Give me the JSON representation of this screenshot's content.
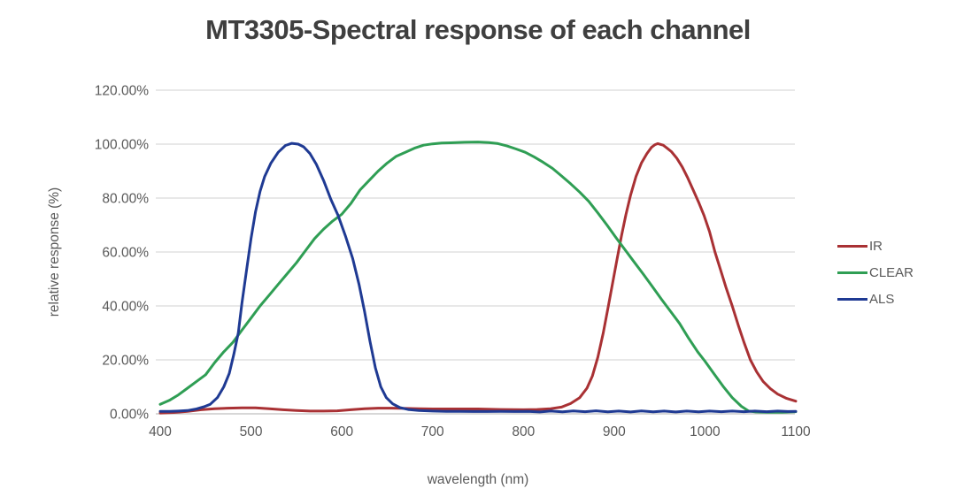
{
  "colors": {
    "background": "#FFFFFF",
    "title_text": "#3F3F3F",
    "axis_text": "#595959",
    "gridline": "#D9D9D9",
    "axis_line": "#BFBFBF"
  },
  "chart_data": {
    "type": "line",
    "title": "MT3305-Spectral response of each channel",
    "xlabel": "wavelength (nm)",
    "ylabel": "relative response (%)",
    "xlim": [
      400,
      1100
    ],
    "ylim_pct": [
      0,
      120
    ],
    "x_ticks": [
      400,
      500,
      600,
      700,
      800,
      900,
      1000,
      1100
    ],
    "y_ticks": [
      "0.00%",
      "20.00%",
      "40.00%",
      "60.00%",
      "80.00%",
      "100.00%",
      "120.00%"
    ],
    "grid": "horizontal-only",
    "legend_position": "right",
    "series": [
      {
        "name": "IR",
        "color": "#A93134",
        "points": [
          [
            400,
            0.3
          ],
          [
            415,
            0.5
          ],
          [
            430,
            0.9
          ],
          [
            445,
            1.5
          ],
          [
            460,
            1.9
          ],
          [
            475,
            2.1
          ],
          [
            490,
            2.2
          ],
          [
            505,
            2.2
          ],
          [
            520,
            1.9
          ],
          [
            535,
            1.5
          ],
          [
            550,
            1.2
          ],
          [
            565,
            1.0
          ],
          [
            580,
            1.0
          ],
          [
            595,
            1.1
          ],
          [
            610,
            1.5
          ],
          [
            625,
            1.9
          ],
          [
            640,
            2.1
          ],
          [
            655,
            2.1
          ],
          [
            670,
            2.0
          ],
          [
            685,
            1.9
          ],
          [
            700,
            1.8
          ],
          [
            725,
            1.8
          ],
          [
            750,
            1.8
          ],
          [
            775,
            1.6
          ],
          [
            800,
            1.5
          ],
          [
            815,
            1.6
          ],
          [
            830,
            1.9
          ],
          [
            842,
            2.5
          ],
          [
            852,
            3.8
          ],
          [
            862,
            6.0
          ],
          [
            870,
            9.5
          ],
          [
            876,
            14
          ],
          [
            882,
            21
          ],
          [
            888,
            30
          ],
          [
            893,
            39
          ],
          [
            898,
            48
          ],
          [
            903,
            57
          ],
          [
            908,
            66
          ],
          [
            913,
            74
          ],
          [
            918,
            81
          ],
          [
            924,
            88
          ],
          [
            930,
            93
          ],
          [
            936,
            96.5
          ],
          [
            941,
            98.8
          ],
          [
            945,
            99.8
          ],
          [
            948,
            100.2
          ],
          [
            951,
            99.9
          ],
          [
            954,
            99.6
          ],
          [
            958,
            98.6
          ],
          [
            963,
            97.2
          ],
          [
            969,
            94.8
          ],
          [
            975,
            91.5
          ],
          [
            981,
            87.5
          ],
          [
            987,
            83
          ],
          [
            993,
            78.5
          ],
          [
            999,
            73.5
          ],
          [
            1005,
            67.5
          ],
          [
            1011,
            60
          ],
          [
            1017,
            53.5
          ],
          [
            1023,
            47
          ],
          [
            1030,
            40
          ],
          [
            1037,
            32.5
          ],
          [
            1043,
            26.5
          ],
          [
            1050,
            20
          ],
          [
            1057,
            15.5
          ],
          [
            1064,
            12
          ],
          [
            1072,
            9.3
          ],
          [
            1080,
            7.3
          ],
          [
            1090,
            5.7
          ],
          [
            1100,
            4.7
          ]
        ]
      },
      {
        "name": "CLEAR",
        "color": "#2F9E54",
        "points": [
          [
            400,
            3.5
          ],
          [
            410,
            5
          ],
          [
            420,
            7
          ],
          [
            430,
            9.5
          ],
          [
            440,
            12
          ],
          [
            450,
            14.5
          ],
          [
            460,
            19
          ],
          [
            470,
            23
          ],
          [
            480,
            26.5
          ],
          [
            490,
            31
          ],
          [
            500,
            35.5
          ],
          [
            510,
            40
          ],
          [
            520,
            44
          ],
          [
            530,
            48
          ],
          [
            540,
            52
          ],
          [
            550,
            56
          ],
          [
            560,
            60.5
          ],
          [
            570,
            65
          ],
          [
            580,
            68.5
          ],
          [
            590,
            71.5
          ],
          [
            600,
            74
          ],
          [
            610,
            78
          ],
          [
            620,
            83
          ],
          [
            630,
            86.5
          ],
          [
            640,
            90
          ],
          [
            650,
            93
          ],
          [
            660,
            95.5
          ],
          [
            670,
            97
          ],
          [
            680,
            98.5
          ],
          [
            690,
            99.6
          ],
          [
            700,
            100.1
          ],
          [
            710,
            100.4
          ],
          [
            720,
            100.5
          ],
          [
            735,
            100.7
          ],
          [
            750,
            100.8
          ],
          [
            762,
            100.6
          ],
          [
            772,
            100.2
          ],
          [
            782,
            99.3
          ],
          [
            792,
            98.2
          ],
          [
            802,
            97
          ],
          [
            812,
            95.2
          ],
          [
            822,
            93.2
          ],
          [
            832,
            91
          ],
          [
            842,
            88.2
          ],
          [
            852,
            85.3
          ],
          [
            862,
            82.2
          ],
          [
            872,
            78.8
          ],
          [
            882,
            74.5
          ],
          [
            892,
            70
          ],
          [
            902,
            65.3
          ],
          [
            912,
            60.8
          ],
          [
            922,
            56.3
          ],
          [
            932,
            51.8
          ],
          [
            942,
            47.2
          ],
          [
            952,
            42.5
          ],
          [
            962,
            38
          ],
          [
            972,
            33.5
          ],
          [
            982,
            28
          ],
          [
            992,
            23
          ],
          [
            1000,
            19.5
          ],
          [
            1010,
            14.8
          ],
          [
            1020,
            10.2
          ],
          [
            1030,
            6
          ],
          [
            1040,
            2.8
          ],
          [
            1048,
            1
          ],
          [
            1056,
            0.7
          ],
          [
            1070,
            0.6
          ],
          [
            1085,
            0.6
          ],
          [
            1100,
            0.8
          ]
        ]
      },
      {
        "name": "ALS",
        "color": "#1F3A93",
        "points": [
          [
            400,
            0.9
          ],
          [
            410,
            0.9
          ],
          [
            420,
            1.0
          ],
          [
            430,
            1.2
          ],
          [
            440,
            1.8
          ],
          [
            448,
            2.6
          ],
          [
            455,
            3.5
          ],
          [
            463,
            6
          ],
          [
            470,
            10
          ],
          [
            476,
            15
          ],
          [
            481,
            22
          ],
          [
            486,
            30
          ],
          [
            490,
            41
          ],
          [
            495,
            53
          ],
          [
            500,
            65
          ],
          [
            505,
            75
          ],
          [
            510,
            82.5
          ],
          [
            515,
            88
          ],
          [
            522,
            93
          ],
          [
            530,
            97
          ],
          [
            538,
            99.5
          ],
          [
            545,
            100.3
          ],
          [
            552,
            100
          ],
          [
            558,
            99
          ],
          [
            565,
            96.5
          ],
          [
            572,
            92.5
          ],
          [
            580,
            86.5
          ],
          [
            588,
            79.5
          ],
          [
            596,
            73.5
          ],
          [
            604,
            66
          ],
          [
            612,
            57.5
          ],
          [
            619,
            48
          ],
          [
            625,
            38
          ],
          [
            631,
            27
          ],
          [
            637,
            17
          ],
          [
            643,
            10
          ],
          [
            649,
            6
          ],
          [
            656,
            3.7
          ],
          [
            664,
            2.3
          ],
          [
            673,
            1.6
          ],
          [
            685,
            1.2
          ],
          [
            700,
            1.0
          ],
          [
            715,
            0.9
          ],
          [
            730,
            0.9
          ],
          [
            745,
            0.85
          ],
          [
            760,
            0.85
          ],
          [
            775,
            0.9
          ],
          [
            790,
            0.85
          ],
          [
            805,
            0.9
          ],
          [
            818,
            0.7
          ],
          [
            830,
            1.0
          ],
          [
            843,
            0.75
          ],
          [
            855,
            1.05
          ],
          [
            868,
            0.8
          ],
          [
            880,
            1.1
          ],
          [
            893,
            0.75
          ],
          [
            905,
            1.0
          ],
          [
            918,
            0.7
          ],
          [
            930,
            1.05
          ],
          [
            943,
            0.75
          ],
          [
            955,
            1.0
          ],
          [
            968,
            0.7
          ],
          [
            980,
            1.0
          ],
          [
            993,
            0.75
          ],
          [
            1005,
            1.0
          ],
          [
            1018,
            0.8
          ],
          [
            1030,
            1.0
          ],
          [
            1043,
            0.8
          ],
          [
            1055,
            1.0
          ],
          [
            1068,
            0.8
          ],
          [
            1080,
            1.0
          ],
          [
            1092,
            0.85
          ],
          [
            1100,
            0.9
          ]
        ]
      }
    ]
  }
}
